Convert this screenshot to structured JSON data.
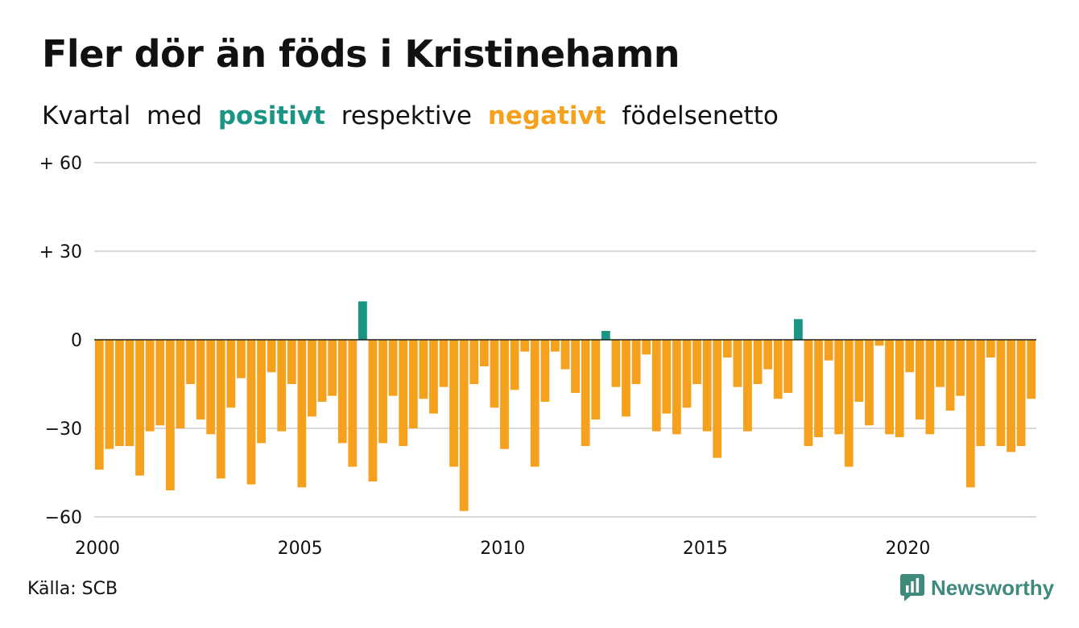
{
  "chart_data": {
    "type": "bar",
    "title": "Fler dör än föds i Kristinehamn",
    "subtitle_parts": [
      "Kvartal",
      "med",
      "positivt",
      "respektive",
      "negativt",
      "födelsenetto"
    ],
    "source": "Källa: SCB",
    "brand": "Newsworthy",
    "positive_color": "#1a9584",
    "negative_color": "#f5a11d",
    "ylim": [
      -60,
      60
    ],
    "yticks": [
      {
        "value": 60,
        "label": "+ 60"
      },
      {
        "value": 30,
        "label": "+ 30"
      },
      {
        "value": 0,
        "label": "0"
      },
      {
        "value": -30,
        "label": "−30"
      },
      {
        "value": -60,
        "label": "−60"
      }
    ],
    "xticks": [
      {
        "year": 2000,
        "label": "2000"
      },
      {
        "year": 2005,
        "label": "2005"
      },
      {
        "year": 2010,
        "label": "2010"
      },
      {
        "year": 2015,
        "label": "2015"
      },
      {
        "year": 2020,
        "label": "2020"
      }
    ],
    "x_start": "2000 Q1",
    "values": [
      -44,
      -37,
      -36,
      -36,
      -46,
      -31,
      -29,
      -51,
      -30,
      -15,
      -27,
      -32,
      -47,
      -23,
      -13,
      -49,
      -35,
      -11,
      -31,
      -15,
      -50,
      -26,
      -21,
      -19,
      -35,
      -43,
      13,
      -48,
      -35,
      -19,
      -36,
      -30,
      -20,
      -25,
      -16,
      -43,
      -58,
      -15,
      -9,
      -23,
      -37,
      -17,
      -4,
      -43,
      -21,
      -4,
      -10,
      -18,
      -36,
      -27,
      3,
      -16,
      -26,
      -15,
      -5,
      -31,
      -25,
      -32,
      -23,
      -15,
      -31,
      -40,
      -6,
      -16,
      -31,
      -15,
      -10,
      -20,
      -18,
      7,
      -36,
      -33,
      -7,
      -32,
      -43,
      -21,
      -29,
      -2,
      -32,
      -33,
      -11,
      -27,
      -32,
      -16,
      -24,
      -19,
      -50,
      -36,
      -6,
      -36,
      -38,
      -36,
      -20
    ]
  }
}
